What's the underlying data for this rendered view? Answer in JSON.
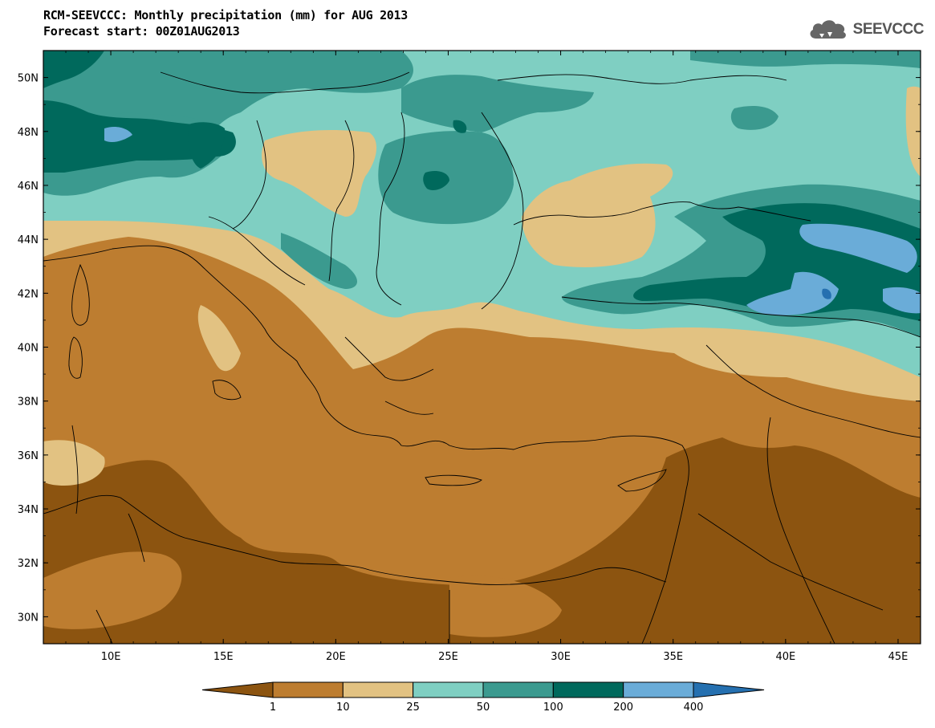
{
  "title": "RCM-SEEVCCC: Monthly precipitation (mm) for AUG 2013",
  "subtitle": "Forecast start: 00Z01AUG2013",
  "logo_text": "SEEVCCC",
  "map": {
    "lon_range": [
      7,
      46
    ],
    "lat_range": [
      29,
      51
    ],
    "lat_ticks": [
      "50N",
      "48N",
      "46N",
      "44N",
      "42N",
      "40N",
      "38N",
      "36N",
      "34N",
      "32N",
      "30N"
    ],
    "lon_ticks": [
      "10E",
      "15E",
      "20E",
      "25E",
      "30E",
      "35E",
      "40E",
      "45E"
    ]
  },
  "colorbar": {
    "labels": [
      "1",
      "10",
      "25",
      "50",
      "100",
      "200",
      "400"
    ],
    "colors": [
      "#8c5410",
      "#bd7d30",
      "#e2c282",
      "#7fcfc2",
      "#3b9a8f",
      "#00695c",
      "#6aacd8",
      "#2570b0"
    ]
  }
}
